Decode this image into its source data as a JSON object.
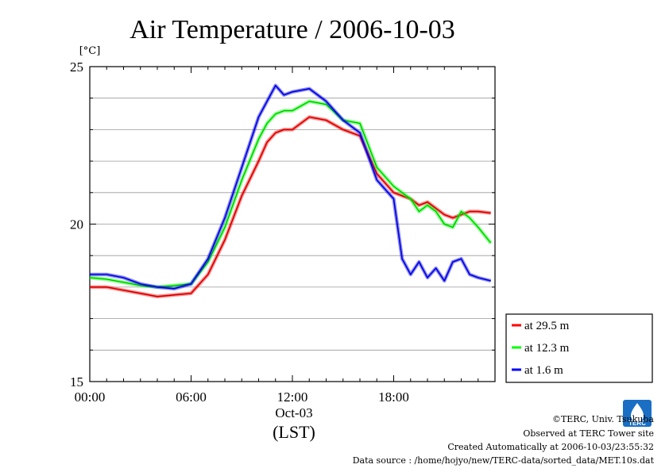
{
  "chart_data": {
    "type": "line",
    "title": "Air Temperature / 2006-10-03",
    "ylabel": "[°C]",
    "xlabel": "(LST)",
    "x_date_label": "Oct-03",
    "ylim": [
      15,
      25
    ],
    "xlim": [
      "00:00",
      "24:00"
    ],
    "y_ticks": [
      "15",
      "20",
      "25"
    ],
    "x_ticks": [
      "00:00",
      "06:00",
      "12:00",
      "18:00"
    ],
    "grid": true,
    "legend_position": "right",
    "x": [
      "00:00",
      "01:00",
      "02:00",
      "03:00",
      "04:00",
      "05:00",
      "06:00",
      "07:00",
      "08:00",
      "09:00",
      "10:00",
      "10:30",
      "11:00",
      "11:30",
      "12:00",
      "13:00",
      "14:00",
      "15:00",
      "16:00",
      "17:00",
      "18:00",
      "18:30",
      "19:00",
      "19:30",
      "20:00",
      "20:30",
      "21:00",
      "21:30",
      "22:00",
      "22:30",
      "23:00",
      "23:45"
    ],
    "series": [
      {
        "name": "at 29.5 m",
        "color": "#ff0000",
        "values": [
          18.0,
          18.0,
          17.9,
          17.8,
          17.7,
          17.75,
          17.8,
          18.4,
          19.5,
          20.9,
          22.0,
          22.6,
          22.9,
          23.0,
          23.0,
          23.4,
          23.3,
          23.0,
          22.8,
          21.6,
          21.0,
          20.9,
          20.8,
          20.6,
          20.7,
          20.5,
          20.3,
          20.2,
          20.3,
          20.4,
          20.4,
          20.35
        ]
      },
      {
        "name": "at 12.3 m",
        "color": "#00ff00",
        "values": [
          18.3,
          18.25,
          18.15,
          18.05,
          18.0,
          18.05,
          18.1,
          18.8,
          19.9,
          21.4,
          22.7,
          23.2,
          23.5,
          23.6,
          23.6,
          23.9,
          23.8,
          23.3,
          23.2,
          21.8,
          21.2,
          21.0,
          20.8,
          20.4,
          20.6,
          20.4,
          20.0,
          19.9,
          20.4,
          20.2,
          19.9,
          19.4
        ]
      },
      {
        "name": "at 1.6 m",
        "color": "#0000ff",
        "values": [
          18.4,
          18.4,
          18.3,
          18.1,
          18.0,
          17.95,
          18.1,
          18.9,
          20.2,
          21.8,
          23.4,
          23.9,
          24.4,
          24.1,
          24.2,
          24.3,
          23.9,
          23.3,
          22.9,
          21.4,
          20.8,
          18.9,
          18.4,
          18.8,
          18.3,
          18.6,
          18.2,
          18.8,
          18.9,
          18.4,
          18.3,
          18.2
        ]
      }
    ]
  },
  "footer": {
    "copyright": "©TERC, Univ. Tsukuba",
    "observed": "Observed at TERC Tower site",
    "created": "Created Automatically at 2006-10-03/23:55:32",
    "source": "Data source : /home/hojyo/new/TERC-data/sorted_data/MET.10s.dat"
  },
  "logo": {
    "text": "TERC",
    "color": "#1a6fc4"
  }
}
